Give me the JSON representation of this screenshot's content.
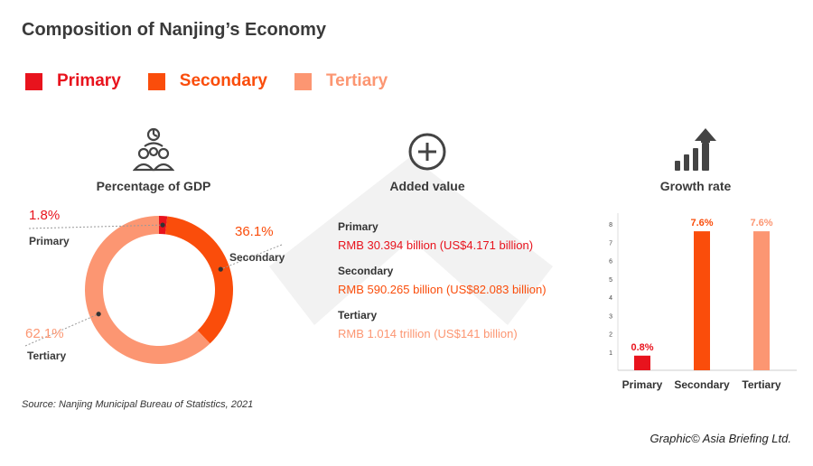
{
  "title": "Composition of Nanjing’s Economy",
  "colors": {
    "primary": "#e8131d",
    "secondary": "#fa4d0b",
    "tertiary": "#fc9672"
  },
  "legend": [
    {
      "label": "Primary",
      "color": "#e8131d"
    },
    {
      "label": "Secondary",
      "color": "#fa4d0b"
    },
    {
      "label": "Tertiary",
      "color": "#fc9672"
    }
  ],
  "gdp": {
    "title": "Percentage of GDP",
    "icon": "people-group-icon",
    "segments": [
      {
        "label": "Primary",
        "pct_text": "1.8%"
      },
      {
        "label": "Secondary",
        "pct_text": "36.1%"
      },
      {
        "label": "Tertiary",
        "pct_text": "62.1%"
      }
    ]
  },
  "added_value": {
    "title": "Added value",
    "icon": "plus-circle-icon",
    "items": [
      {
        "label": "Primary",
        "value": "RMB 30.394 billion (US$4.171 billion)"
      },
      {
        "label": "Secondary",
        "value": "RMB 590.265 billion (US$82.083 billion)"
      },
      {
        "label": "Tertiary",
        "value": "RMB 1.014 trillion (US$141 billion)"
      }
    ]
  },
  "growth": {
    "title": "Growth rate",
    "icon": "bar-chart-up-arrow-icon"
  },
  "chart_data": [
    {
      "type": "pie",
      "title": "Percentage of GDP",
      "categories": [
        "Primary",
        "Secondary",
        "Tertiary"
      ],
      "values": [
        1.8,
        36.1,
        62.1
      ],
      "colors": [
        "#e8131d",
        "#fa4d0b",
        "#fc9672"
      ],
      "style": "donut"
    },
    {
      "type": "bar",
      "title": "Growth rate",
      "categories": [
        "Primary",
        "Secondary",
        "Tertiary"
      ],
      "values": [
        0.8,
        7.6,
        7.6
      ],
      "value_labels": [
        "0.8%",
        "7.6%",
        "7.6%"
      ],
      "colors": [
        "#e8131d",
        "#fa4d0b",
        "#fc9672"
      ],
      "ylim": [
        0,
        8
      ],
      "yticks": [
        1,
        2,
        3,
        4,
        5,
        6,
        7,
        8
      ],
      "grid": false
    }
  ],
  "source": "Source:  Nanjing Municipal Bureau of Statistics, 2021",
  "credit": "Graphic© Asia Briefing Ltd."
}
